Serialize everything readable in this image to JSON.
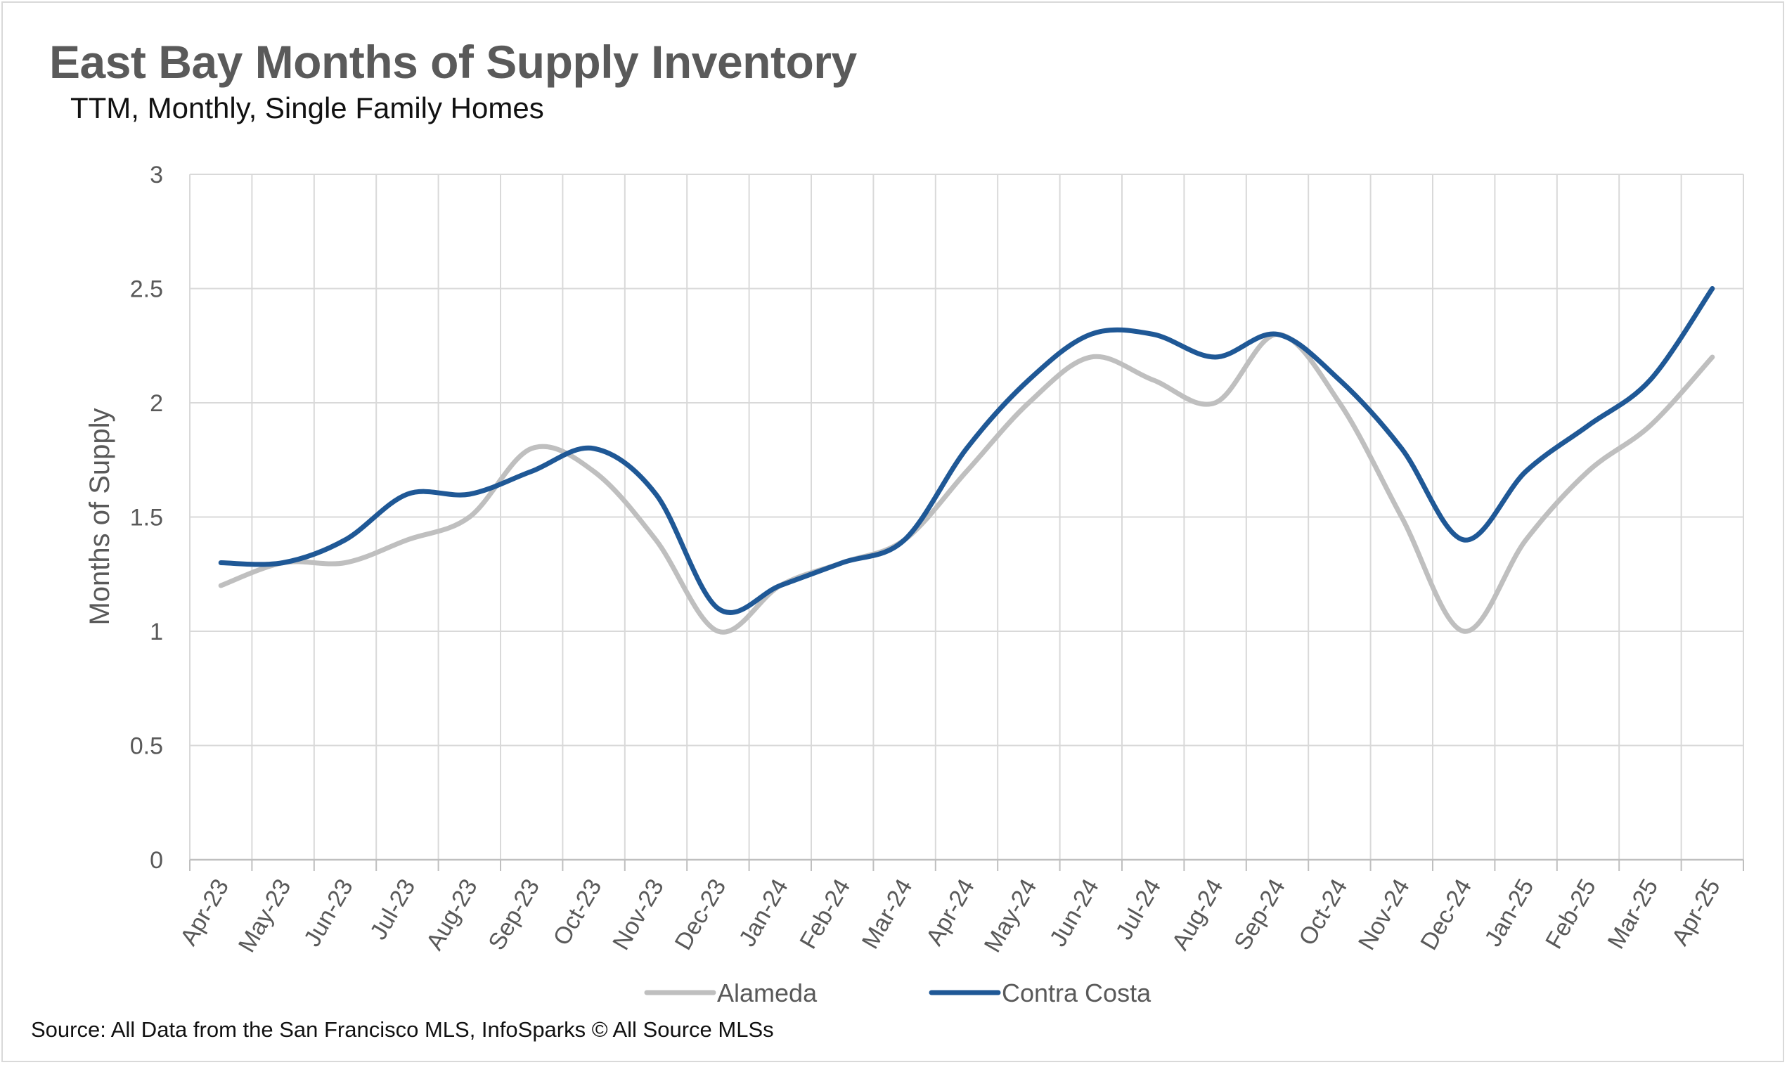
{
  "chart_data": {
    "type": "line",
    "title": "East Bay Months of Supply Inventory",
    "subtitle": "TTM, Monthly, Single Family Homes",
    "xlabel": "",
    "ylabel": "Months of Supply",
    "ylim": [
      0,
      3
    ],
    "yticks": [
      "0",
      "0.5",
      "1",
      "1.5",
      "2",
      "2.5",
      "3"
    ],
    "grid": true,
    "legend_position": "bottom",
    "categories": [
      "Apr-23",
      "May-23",
      "Jun-23",
      "Jul-23",
      "Aug-23",
      "Sep-23",
      "Oct-23",
      "Nov-23",
      "Dec-23",
      "Jan-24",
      "Feb-24",
      "Mar-24",
      "Apr-24",
      "May-24",
      "Jun-24",
      "Jul-24",
      "Aug-24",
      "Sep-24",
      "Oct-24",
      "Nov-24",
      "Dec-24",
      "Jan-25",
      "Feb-25",
      "Mar-25",
      "Apr-25"
    ],
    "series": [
      {
        "name": "Alameda",
        "color": "#bfbfbf",
        "values": [
          1.2,
          1.3,
          1.3,
          1.4,
          1.5,
          1.8,
          1.7,
          1.4,
          1.0,
          1.2,
          1.3,
          1.4,
          1.7,
          2.0,
          2.2,
          2.1,
          2.0,
          2.3,
          2.0,
          1.5,
          1.0,
          1.4,
          1.7,
          1.9,
          2.2
        ]
      },
      {
        "name": "Contra Costa",
        "color": "#1f5896",
        "values": [
          1.3,
          1.3,
          1.4,
          1.6,
          1.6,
          1.7,
          1.8,
          1.6,
          1.1,
          1.2,
          1.3,
          1.4,
          1.8,
          2.1,
          2.3,
          2.3,
          2.2,
          2.3,
          2.1,
          1.8,
          1.4,
          1.7,
          1.9,
          2.1,
          2.5
        ]
      }
    ]
  },
  "source": "Source: All Data from the San Francisco MLS, InfoSparks © All Source MLSs"
}
